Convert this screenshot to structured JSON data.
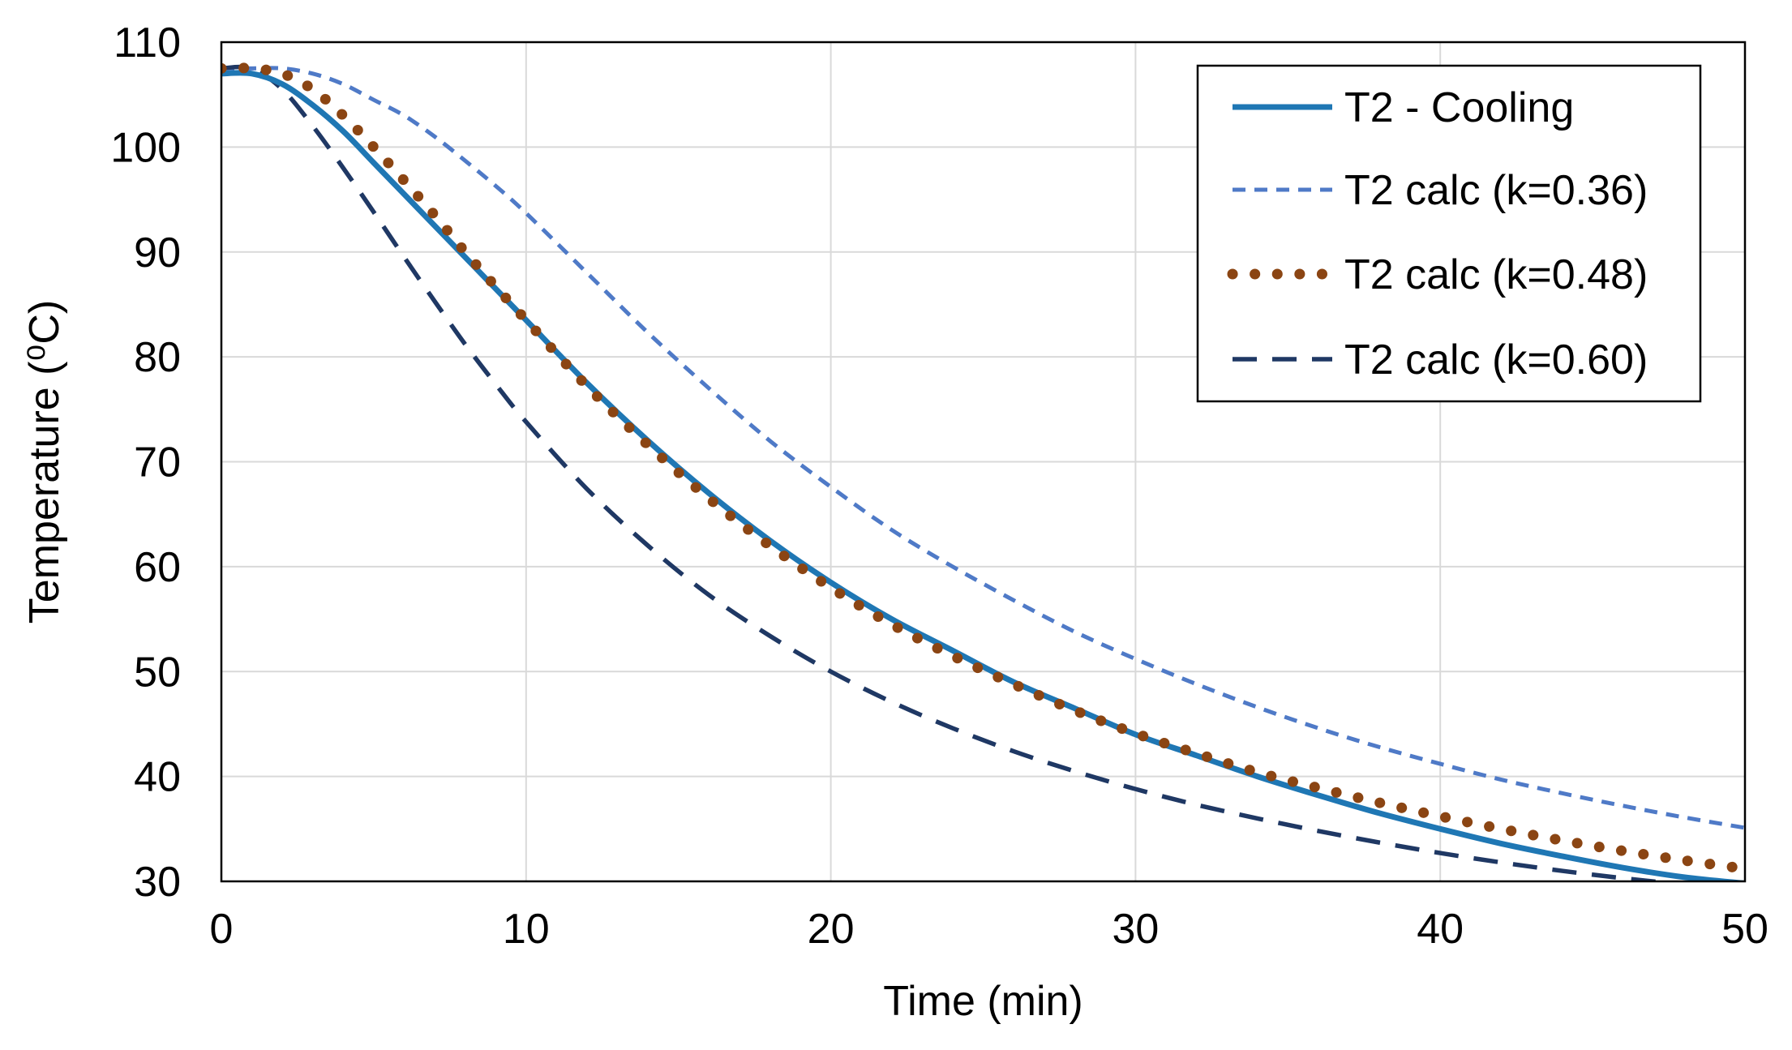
{
  "chart_data": {
    "type": "line",
    "title": "",
    "xlabel": "Time  (min)",
    "ylabel": "Temperature  (⁰C)",
    "xlim": [
      0,
      50
    ],
    "ylim": [
      30,
      110
    ],
    "xticks": [
      0,
      10,
      20,
      30,
      40,
      50
    ],
    "yticks": [
      30,
      40,
      50,
      60,
      70,
      80,
      90,
      100,
      110
    ],
    "xtick_labels": [
      "0",
      "10",
      "20",
      "30",
      "40",
      "50"
    ],
    "ytick_labels": [
      "30",
      "40",
      "50",
      "60",
      "70",
      "80",
      "90",
      "100",
      "110"
    ],
    "grid": true,
    "legend_position": "top-right",
    "series": [
      {
        "name": "T2 - Cooling",
        "style": "solid",
        "color": "#1f77b4",
        "x": [
          0,
          1,
          2,
          3,
          4,
          5,
          6,
          7,
          8,
          9,
          10,
          12,
          14,
          16,
          18,
          20,
          22,
          24,
          26,
          28,
          30,
          32,
          34,
          36,
          38,
          40,
          42,
          44,
          46,
          48,
          50
        ],
        "y": [
          107,
          107,
          106,
          104,
          101.5,
          98.5,
          95.5,
          92.5,
          89.5,
          86.5,
          83.5,
          77.5,
          72,
          67,
          62.5,
          58.5,
          55,
          52,
          49,
          46.5,
          44,
          42,
          40,
          38.2,
          36.5,
          35,
          33.6,
          32.4,
          31.3,
          30.4,
          29.8
        ]
      },
      {
        "name": "T2 calc (k=0.36)",
        "style": "short-dash",
        "color": "#4f7ac7",
        "x": [
          0,
          1,
          2,
          3,
          4,
          5,
          6,
          7,
          8,
          9,
          10,
          12,
          14,
          16,
          18,
          20,
          22,
          24,
          26,
          28,
          30,
          32,
          34,
          36,
          38,
          40,
          42,
          44,
          46,
          48,
          50
        ],
        "y": [
          107.5,
          107.5,
          107.5,
          107,
          106,
          104.5,
          103,
          101,
          98.7,
          96.3,
          93.7,
          88,
          82.3,
          77,
          72,
          67.6,
          63.5,
          60,
          56.8,
          53.8,
          51.2,
          48.8,
          46.6,
          44.6,
          42.8,
          41.2,
          39.7,
          38.4,
          37.2,
          36.1,
          35.1
        ]
      },
      {
        "name": "T2 calc (k=0.48)",
        "style": "dotted",
        "color": "#8b4513",
        "x": [
          0,
          1,
          2,
          3,
          4,
          5,
          6,
          7,
          8,
          9,
          10,
          12,
          14,
          16,
          18,
          20,
          22,
          24,
          26,
          28,
          30,
          32,
          34,
          36,
          38,
          40,
          42,
          44,
          46,
          48,
          50
        ],
        "y": [
          107.5,
          107.5,
          107,
          105.5,
          103,
          100,
          96.8,
          93.5,
          90,
          86.7,
          83.5,
          77.2,
          71.6,
          66.5,
          62,
          58,
          54.5,
          51.5,
          48.8,
          46.3,
          44.1,
          42.2,
          40.4,
          38.9,
          37.5,
          36.2,
          35,
          33.9,
          32.9,
          32,
          31.2
        ]
      },
      {
        "name": "T2 calc (k=0.60)",
        "style": "long-dash",
        "color": "#1f3864",
        "x": [
          0,
          1,
          2,
          3,
          4,
          5,
          6,
          7,
          8,
          9,
          10,
          12,
          14,
          16,
          18,
          20,
          22,
          24,
          26,
          28,
          30,
          32,
          34,
          36,
          38,
          40,
          42,
          44,
          46,
          48,
          50
        ],
        "y": [
          107.5,
          107.5,
          105.5,
          102,
          98,
          93.8,
          89.5,
          85.3,
          81.2,
          77.4,
          73.8,
          67.4,
          62,
          57.3,
          53.4,
          50,
          47.1,
          44.6,
          42.4,
          40.5,
          38.8,
          37.3,
          36,
          34.8,
          33.7,
          32.7,
          31.8,
          31,
          30.3,
          29.7,
          29.2
        ]
      }
    ]
  }
}
